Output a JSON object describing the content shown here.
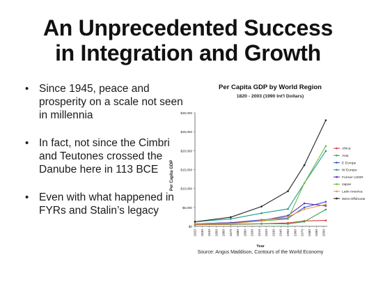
{
  "slide": {
    "title_line1": "An Unprecedented Success",
    "title_line2": "in Integration and Growth",
    "bullets": [
      "Since 1945, peace and prosperity on a scale not seen in millennia",
      "In fact, not since the Cimbri and Teutones crossed the Danube here in 113 BCE",
      "Even with what happened in FYRs and Stalin’s legacy"
    ],
    "bullet_glyph": "•"
  },
  "chart_data": {
    "type": "line",
    "title": "Per Capita GDP by World Region",
    "subtitle": "1820 - 2003 (1990 Int'l Dollars)",
    "xlabel": "Year",
    "ylabel": "Per Capita GDP",
    "source": "Source: Angus Maddison, Contours of the World Economy",
    "x": [
      1820,
      1870,
      1913,
      1950,
      1973,
      2003
    ],
    "x_ticks": [
      "1820",
      "1830",
      "1840",
      "1850",
      "1860",
      "1870",
      "1880",
      "1890",
      "1900",
      "1910",
      "1920",
      "1930",
      "1940",
      "1950",
      "1960",
      "1970",
      "1980",
      "1990",
      "2000"
    ],
    "x_range": [
      1820,
      2005
    ],
    "y_ticks": [
      "$0",
      "$5,000",
      "$10,000",
      "$15,000",
      "$20,000",
      "$25,000",
      "$30,000"
    ],
    "ylim": [
      0,
      30000
    ],
    "grid": false,
    "legend_position": "right",
    "series": [
      {
        "name": "Africa",
        "color": "#e23b3b",
        "values": [
          420,
          500,
          640,
          890,
          1410,
          1550
        ]
      },
      {
        "name": "Asia",
        "color": "#3aa64a",
        "values": [
          580,
          550,
          680,
          630,
          1230,
          4430
        ]
      },
      {
        "name": "E Europe",
        "color": "#3a57d8",
        "values": [
          680,
          950,
          1700,
          2110,
          4990,
          6480
        ]
      },
      {
        "name": "W Europe",
        "color": "#1f9a8e",
        "values": [
          1200,
          1960,
          3460,
          4580,
          11420,
          19910
        ]
      },
      {
        "name": "Former USSR",
        "color": "#5a2fb8",
        "values": [
          690,
          940,
          1490,
          2840,
          6060,
          5400
        ]
      },
      {
        "name": "Japan",
        "color": "#6dba45",
        "values": [
          670,
          740,
          1390,
          1920,
          11430,
          21220
        ]
      },
      {
        "name": "Latin America",
        "color": "#e89a3a",
        "values": [
          690,
          680,
          1490,
          2500,
          4500,
          5790
        ]
      },
      {
        "name": "West Offshoots",
        "color": "#222222",
        "values": [
          1200,
          2420,
          5230,
          9270,
          16170,
          28040
        ]
      }
    ]
  }
}
